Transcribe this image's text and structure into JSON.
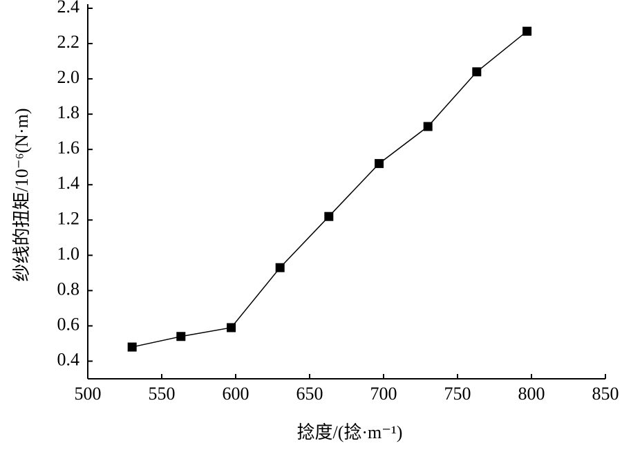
{
  "chart_data": {
    "type": "line",
    "x_label": "捻度/(捻·m⁻¹)",
    "y_label": "纱线的扭矩/10⁻⁶(N·m)",
    "x": [
      530,
      563,
      597,
      630,
      663,
      697,
      730,
      763,
      797
    ],
    "series": [
      {
        "color": "#000000",
        "values": [
          0.48,
          0.54,
          0.59,
          0.93,
          1.22,
          1.52,
          1.73,
          2.04,
          2.27
        ]
      }
    ],
    "xlim": [
      500,
      850
    ],
    "xticks": [
      500,
      550,
      600,
      650,
      700,
      750,
      800,
      850
    ],
    "ylim": [
      0.3,
      2.4
    ],
    "yticks": [
      0.4,
      0.6,
      0.8,
      {
        "value": 1,
        "label": "1.0"
      },
      1.2,
      1.4,
      1.6,
      1.8,
      {
        "value": 2,
        "label": "2.0"
      },
      2.2,
      2.4
    ],
    "marker": "square"
  }
}
